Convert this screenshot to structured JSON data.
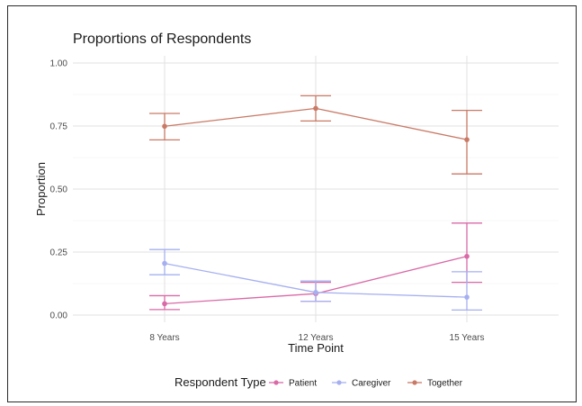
{
  "chart_data": {
    "type": "line",
    "title": "Proportions of Respondents",
    "xlabel": "Time Point",
    "ylabel": "Proportion",
    "categories": [
      "8 Years",
      "12 Years",
      "15 Years"
    ],
    "ylim": [
      0,
      1
    ],
    "yticks": [
      0,
      0.25,
      0.5,
      0.75,
      1.0
    ],
    "ytick_labels": [
      "0.00",
      "0.25",
      "0.50",
      "0.75",
      "1.00"
    ],
    "grid": true,
    "legend": {
      "title": "Respondent Type",
      "position": "bottom"
    },
    "series": [
      {
        "name": "Patient",
        "color": "#d96aa7",
        "values": [
          0.045,
          0.085,
          0.233
        ],
        "lower": [
          0.022,
          0.055,
          0.13
        ],
        "upper": [
          0.077,
          0.13,
          0.365
        ]
      },
      {
        "name": "Caregiver",
        "color": "#a6b0f0",
        "values": [
          0.205,
          0.09,
          0.071
        ],
        "lower": [
          0.16,
          0.055,
          0.02
        ],
        "upper": [
          0.26,
          0.135,
          0.172
        ]
      },
      {
        "name": "Together",
        "color": "#c97a66",
        "values": [
          0.749,
          0.82,
          0.696
        ],
        "lower": [
          0.695,
          0.77,
          0.56
        ],
        "upper": [
          0.8,
          0.87,
          0.812
        ]
      }
    ]
  }
}
